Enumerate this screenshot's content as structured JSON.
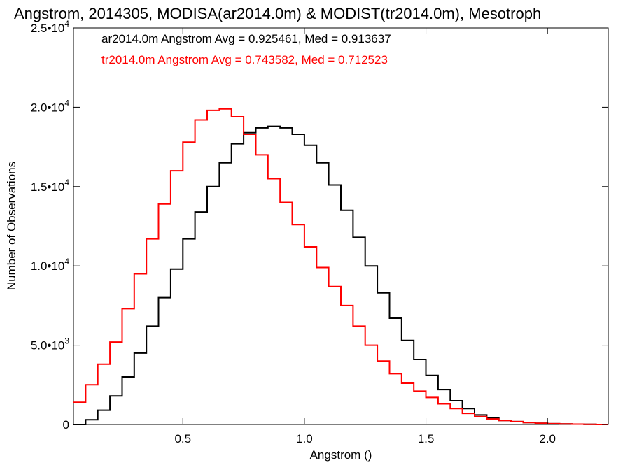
{
  "chart_data": {
    "type": "line",
    "title": "Angstrom, 2014305, MODISA(ar2014.0m) & MODIST(tr2014.0m), Mesotroph",
    "xlabel": "Angstrom ()",
    "ylabel": "Number of Observations",
    "xlim": [
      0.05,
      2.25
    ],
    "ylim": [
      0,
      25000
    ],
    "x_ticks": [
      {
        "value": 0.5,
        "label": "0.5"
      },
      {
        "value": 1.0,
        "label": "1.0"
      },
      {
        "value": 1.5,
        "label": "1.5"
      },
      {
        "value": 2.0,
        "label": "2.0"
      }
    ],
    "y_ticks": [
      {
        "value": 0,
        "mantissa": "0",
        "exponent": ""
      },
      {
        "value": 5000,
        "mantissa": "5.0•10",
        "exponent": "3"
      },
      {
        "value": 10000,
        "mantissa": "1.0•10",
        "exponent": "4"
      },
      {
        "value": 15000,
        "mantissa": "1.5•10",
        "exponent": "4"
      },
      {
        "value": 20000,
        "mantissa": "2.0•10",
        "exponent": "4"
      },
      {
        "value": 25000,
        "mantissa": "2.5•10",
        "exponent": "4"
      }
    ],
    "grid": false,
    "step": true,
    "series": [
      {
        "name": "ar2014.0m",
        "color": "#000000",
        "stat_text": "ar2014.0m Angstrom Avg = 0.925461, Med = 0.913637",
        "x": [
          0.05,
          0.1,
          0.15,
          0.2,
          0.25,
          0.3,
          0.35,
          0.4,
          0.45,
          0.5,
          0.55,
          0.6,
          0.65,
          0.7,
          0.75,
          0.8,
          0.85,
          0.9,
          0.95,
          1.0,
          1.05,
          1.1,
          1.15,
          1.2,
          1.25,
          1.3,
          1.35,
          1.4,
          1.45,
          1.5,
          1.55,
          1.6,
          1.65,
          1.7,
          1.75,
          1.8,
          1.85,
          1.9,
          1.95,
          2.0,
          2.05,
          2.1,
          2.15,
          2.2,
          2.25
        ],
        "y": [
          0,
          300,
          900,
          1800,
          3000,
          4500,
          6200,
          8000,
          9800,
          11700,
          13400,
          15000,
          16500,
          17700,
          18400,
          18700,
          18800,
          18700,
          18300,
          17600,
          16500,
          15100,
          13500,
          11800,
          10000,
          8300,
          6700,
          5300,
          4100,
          3100,
          2200,
          1500,
          1000,
          600,
          400,
          250,
          180,
          120,
          80,
          50,
          30,
          20,
          10,
          0,
          0
        ]
      },
      {
        "name": "tr2014.0m",
        "color": "#ff0000",
        "stat_text": "tr2014.0m Angstrom Avg = 0.743582, Med = 0.712523",
        "x": [
          0.05,
          0.1,
          0.15,
          0.2,
          0.25,
          0.3,
          0.35,
          0.4,
          0.45,
          0.5,
          0.55,
          0.6,
          0.65,
          0.7,
          0.75,
          0.8,
          0.85,
          0.9,
          0.95,
          1.0,
          1.05,
          1.1,
          1.15,
          1.2,
          1.25,
          1.3,
          1.35,
          1.4,
          1.45,
          1.5,
          1.55,
          1.6,
          1.65,
          1.7,
          1.75,
          1.8,
          1.85,
          1.9,
          1.95,
          2.0,
          2.05,
          2.1,
          2.15,
          2.2,
          2.25
        ],
        "y": [
          1400,
          2500,
          3800,
          5200,
          7300,
          9500,
          11700,
          13900,
          16000,
          17800,
          19200,
          19800,
          19900,
          19400,
          18300,
          17000,
          15500,
          14000,
          12600,
          11200,
          9900,
          8700,
          7500,
          6200,
          5000,
          4000,
          3200,
          2600,
          2100,
          1700,
          1300,
          1000,
          700,
          500,
          350,
          250,
          180,
          120,
          80,
          50,
          30,
          20,
          10,
          0,
          0
        ]
      }
    ]
  }
}
